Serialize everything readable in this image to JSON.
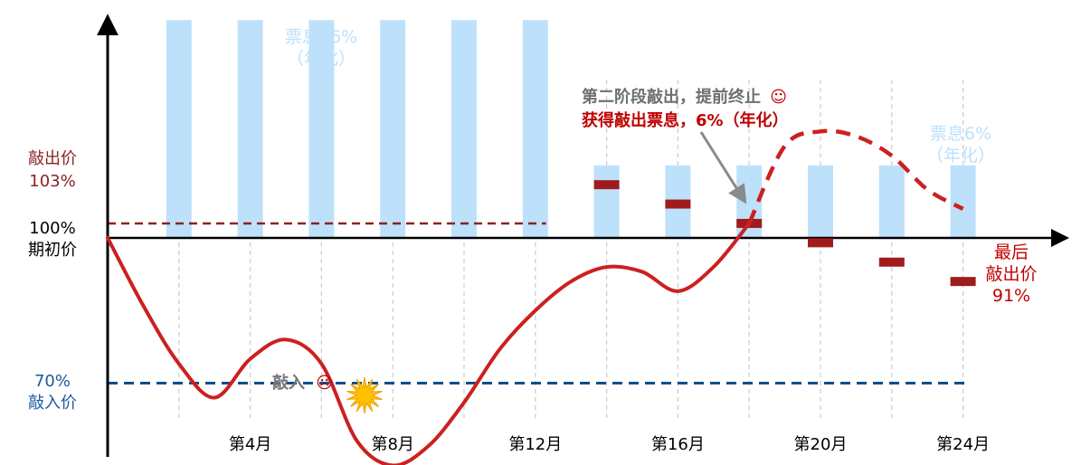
{
  "chart_data": {
    "type": "bar",
    "x_unit": "month",
    "months": [
      2,
      4,
      6,
      8,
      10,
      12,
      14,
      16,
      18,
      20,
      22,
      24
    ],
    "coupon_bars": {
      "phase1": {
        "months": [
          2,
          4,
          6,
          8,
          10,
          12
        ],
        "top_pct": 145,
        "label": "票息16%",
        "label_sub": "（年化）",
        "color": "#bde1fb"
      },
      "phase2": {
        "months": [
          14,
          16,
          18,
          20,
          22,
          24
        ],
        "top_pct": 115,
        "label": "票息6%",
        "label_sub": "（年化）",
        "color": "#bde1fb"
      }
    },
    "knockout_markers": {
      "color": "#a01c1c",
      "points": [
        {
          "month": 14,
          "value": 111
        },
        {
          "month": 16,
          "value": 107
        },
        {
          "month": 18,
          "value": 103
        },
        {
          "month": 20,
          "value": 99
        },
        {
          "month": 22,
          "value": 95
        },
        {
          "month": 24,
          "value": 91
        }
      ]
    },
    "price_path": {
      "color": "#cc2020",
      "solid": [
        [
          0,
          100
        ],
        [
          1,
          86
        ],
        [
          2,
          74
        ],
        [
          3,
          67
        ],
        [
          4,
          75
        ],
        [
          5,
          79
        ],
        [
          6,
          74
        ],
        [
          7,
          58
        ],
        [
          8,
          53
        ],
        [
          9,
          57
        ],
        [
          10,
          66
        ],
        [
          11,
          77
        ],
        [
          12,
          85
        ],
        [
          13,
          91
        ],
        [
          14,
          94
        ],
        [
          15,
          93
        ],
        [
          16,
          89
        ],
        [
          17,
          94
        ],
        [
          18,
          103
        ]
      ],
      "dashed": [
        [
          18,
          103
        ],
        [
          19,
          119
        ],
        [
          20,
          122
        ],
        [
          21,
          121
        ],
        [
          22,
          117
        ],
        [
          23,
          110
        ],
        [
          24,
          106
        ]
      ]
    },
    "knock_in_level": {
      "value": 70,
      "label_pct": "70%",
      "label_name": "敲入价",
      "color": "#0d4f8c"
    },
    "knock_out_level": {
      "value": 103,
      "label_pct": "103%",
      "label_name": "敲出价",
      "color": "#8b2323"
    },
    "initial_level": {
      "value": 100,
      "label_pct": "100%",
      "label_name": "期初价"
    },
    "x_ticks": [
      {
        "month": 4,
        "label": "第4月"
      },
      {
        "month": 8,
        "label": "第8月"
      },
      {
        "month": 12,
        "label": "第12月"
      },
      {
        "month": 16,
        "label": "第16月"
      },
      {
        "month": 20,
        "label": "第20月"
      },
      {
        "month": 24,
        "label": "第24月"
      }
    ],
    "annotations": {
      "knock_in": {
        "text": "敲入",
        "emoji": "☹",
        "color": "#777777"
      },
      "phase2_line1": {
        "text": "第二阶段敲出，提前终止",
        "emoji": "☺",
        "color": "#6f6f6f"
      },
      "phase2_line2": {
        "text": "获得敲出票息，6%（年化）",
        "color": "#c00000"
      },
      "final": {
        "line1": "最后",
        "line2": "敲出价",
        "line3": "91%",
        "color": "#c00000"
      }
    },
    "colors": {
      "axis": "#000000",
      "gridline": "#c9cbd3",
      "label_red": "#8b2323",
      "label_blue": "#1b5aa0"
    }
  }
}
